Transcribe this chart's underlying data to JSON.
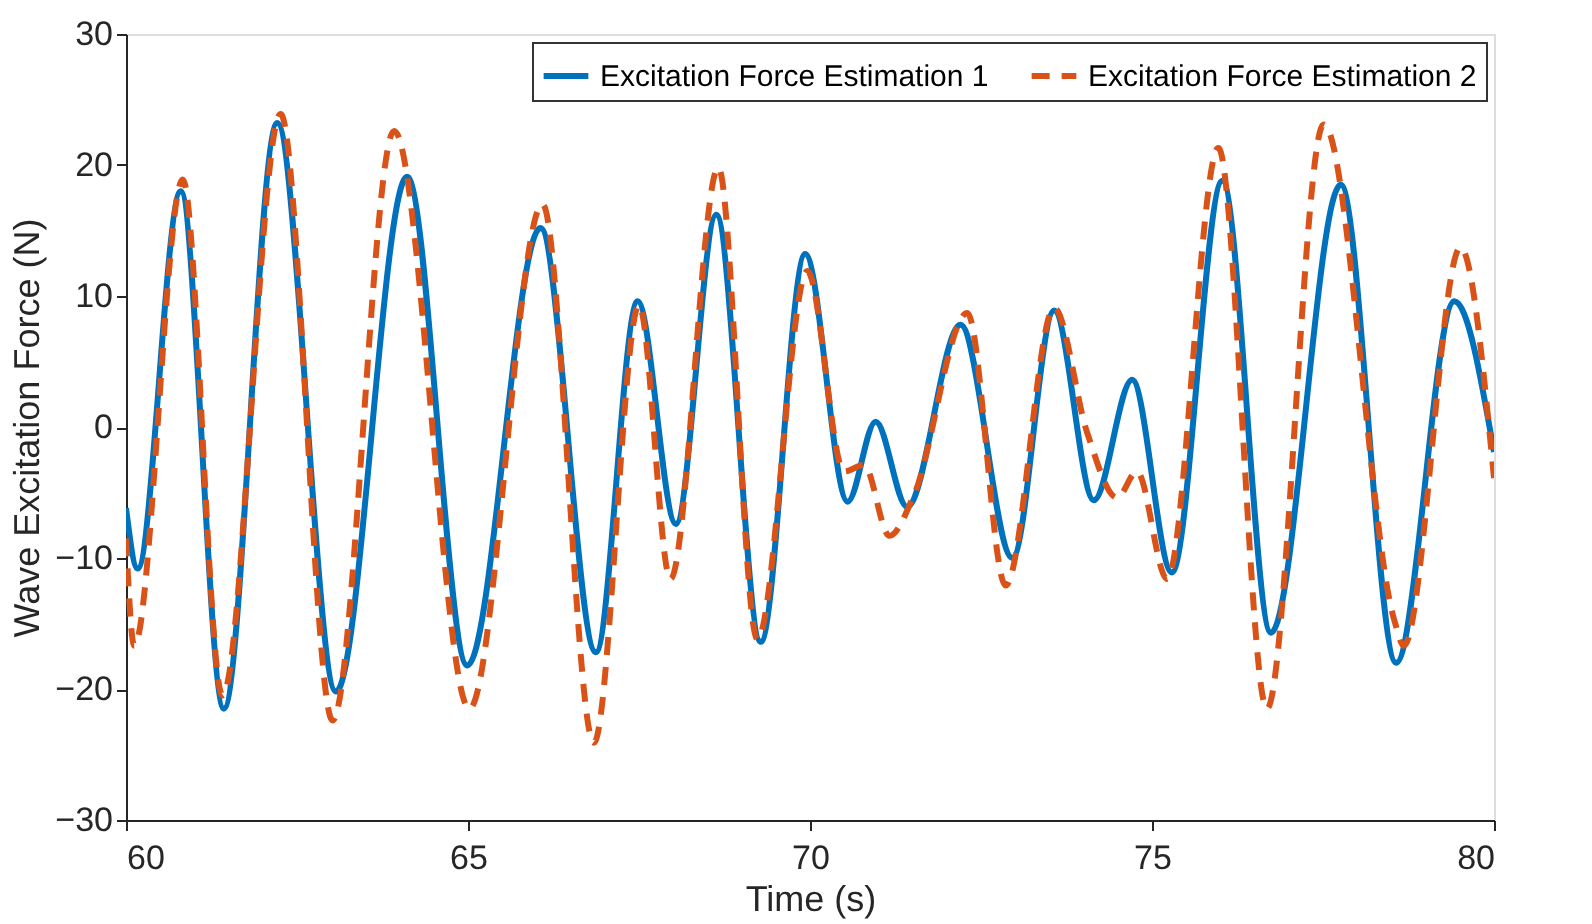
{
  "chart_data": {
    "type": "line",
    "xlabel": "Time (s)",
    "ylabel": "Wave Excitation Force (N)",
    "xlim": [
      60,
      80
    ],
    "xticks": [
      60,
      65,
      70,
      75,
      80
    ],
    "ylim": [
      -30,
      30
    ],
    "yticks": [
      -30,
      -20,
      -10,
      0,
      10,
      20,
      30
    ],
    "grid": false,
    "legend": "top right",
    "marker": "none",
    "series": [
      {
        "name": "Excitation Force Estimation 1",
        "color": "#0072bd",
        "line_style": "solid",
        "x": [
          60,
          60.17,
          60.8,
          61.43,
          62.21,
          63.07,
          64.11,
          64.99,
          66.06,
          66.87,
          67.48,
          68.04,
          68.63,
          69.28,
          69.93,
          70.55,
          70.96,
          71.42,
          72.2,
          72.96,
          73.57,
          74.15,
          74.71,
          75.29,
          76.03,
          76.74,
          77.76,
          78.57,
          79.42,
          80
        ],
        "values": [
          -6.2,
          -10.8,
          18.0,
          -21.5,
          23.2,
          -20.2,
          19.1,
          -18.2,
          15.2,
          -17.2,
          9.6,
          -7.4,
          16.2,
          -16.4,
          13.2,
          -5.7,
          0.4,
          -6.1,
          7.8,
          -10.0,
          8.9,
          -5.6,
          3.6,
          -11.1,
          18.8,
          -15.7,
          18.5,
          -18.0,
          9.6,
          -1.9
        ]
      },
      {
        "name": "Excitation Force Estimation 2",
        "color": "#d95319",
        "line_style": "dashed",
        "x": [
          60,
          60.12,
          60.83,
          61.41,
          62.26,
          63.02,
          63.92,
          65.02,
          66.09,
          66.84,
          67.5,
          67.96,
          68.66,
          69.23,
          69.96,
          70.5,
          70.79,
          71.16,
          71.52,
          72.3,
          72.86,
          73.57,
          74.05,
          74.49,
          74.78,
          75.22,
          75.97,
          76.68,
          77.51,
          78.54,
          78.68,
          79.51,
          80
        ],
        "values": [
          -8.5,
          -16.7,
          18.9,
          -20.5,
          23.9,
          -22.4,
          22.6,
          -21.5,
          17.0,
          -24.1,
          9.3,
          -11.6,
          19.8,
          -16.2,
          11.9,
          -3.4,
          -2.9,
          -8.3,
          -5.2,
          8.7,
          -12.1,
          9.1,
          -0.4,
          -5.4,
          -3.4,
          -11.6,
          21.3,
          -21.5,
          23.1,
          -14.7,
          -16.7,
          13.7,
          -3.9
        ]
      }
    ]
  }
}
